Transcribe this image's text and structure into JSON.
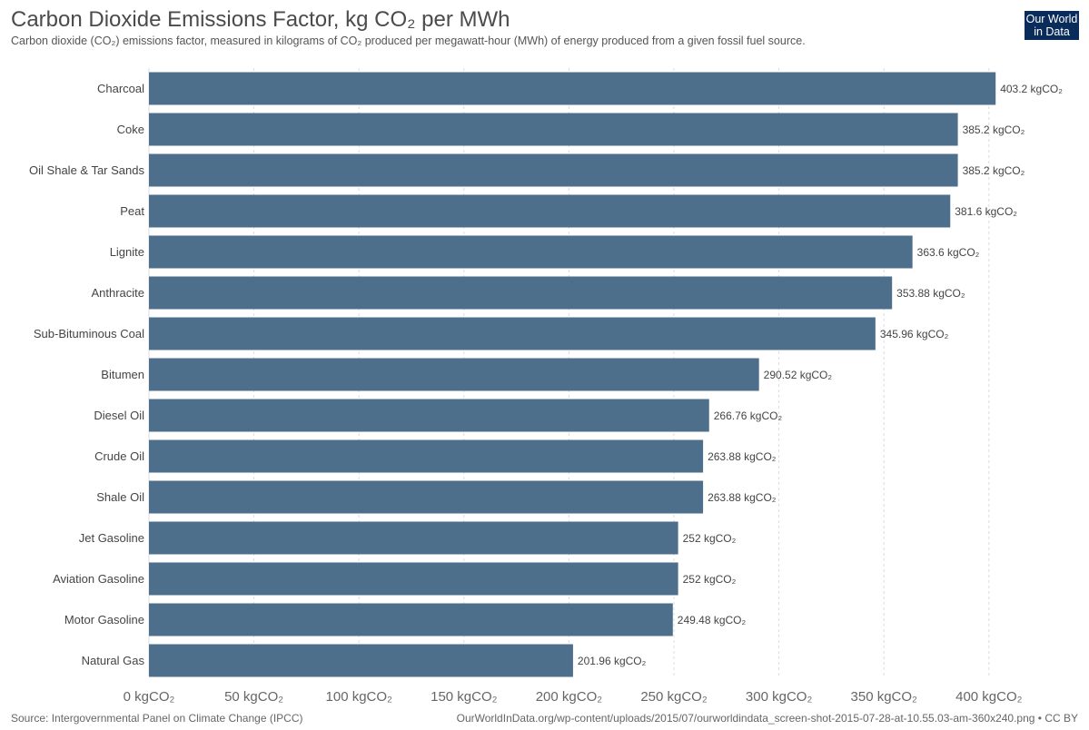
{
  "header": {
    "title": "Carbon Dioxide Emissions Factor, kg CO₂ per MWh",
    "subtitle": "Carbon dioxide (CO₂) emissions factor, measured in kilograms of CO₂ produced per megawatt-hour (MWh) of energy produced from a given fossil fuel source.",
    "logo_line1": "Our World",
    "logo_line2": "in Data"
  },
  "footer": {
    "source": "Source: Intergovernmental Panel on Climate Change (IPCC)",
    "url": "OurWorldInData.org/wp-content/uploads/2015/07/ourworldindata_screen-shot-2015-07-28-at-10.55.03-am-360x240.png • CC BY"
  },
  "colors": {
    "bar": "#4e6f8c",
    "grid": "#dddddd",
    "axis_text": "#666666",
    "label_text": "#444444"
  },
  "chart_data": {
    "type": "bar",
    "orientation": "horizontal",
    "categories": [
      "Charcoal",
      "Coke",
      "Oil Shale & Tar Sands",
      "Peat",
      "Lignite",
      "Anthracite",
      "Sub-Bituminous Coal",
      "Bitumen",
      "Diesel Oil",
      "Crude Oil",
      "Shale Oil",
      "Jet Gasoline",
      "Aviation Gasoline",
      "Motor Gasoline",
      "Natural Gas"
    ],
    "values": [
      403.2,
      385.2,
      385.2,
      381.6,
      363.6,
      353.88,
      345.96,
      290.52,
      266.76,
      263.88,
      263.88,
      252,
      252,
      249.48,
      201.96
    ],
    "value_labels": [
      "403.2 kgCO₂",
      "385.2 kgCO₂",
      "385.2 kgCO₂",
      "381.6 kgCO₂",
      "363.6 kgCO₂",
      "353.88 kgCO₂",
      "345.96 kgCO₂",
      "290.52 kgCO₂",
      "266.76 kgCO₂",
      "263.88 kgCO₂",
      "263.88 kgCO₂",
      "252 kgCO₂",
      "252 kgCO₂",
      "249.48 kgCO₂",
      "201.96 kgCO₂"
    ],
    "xticks": [
      0,
      50,
      100,
      150,
      200,
      250,
      300,
      350,
      400
    ],
    "xtick_labels": [
      "0 kgCO₂",
      "50 kgCO₂",
      "100 kgCO₂",
      "150 kgCO₂",
      "200 kgCO₂",
      "250 kgCO₂",
      "300 kgCO₂",
      "350 kgCO₂",
      "400 kgCO₂"
    ],
    "xlim": [
      0,
      420
    ],
    "grid": "vertical-dashed"
  }
}
